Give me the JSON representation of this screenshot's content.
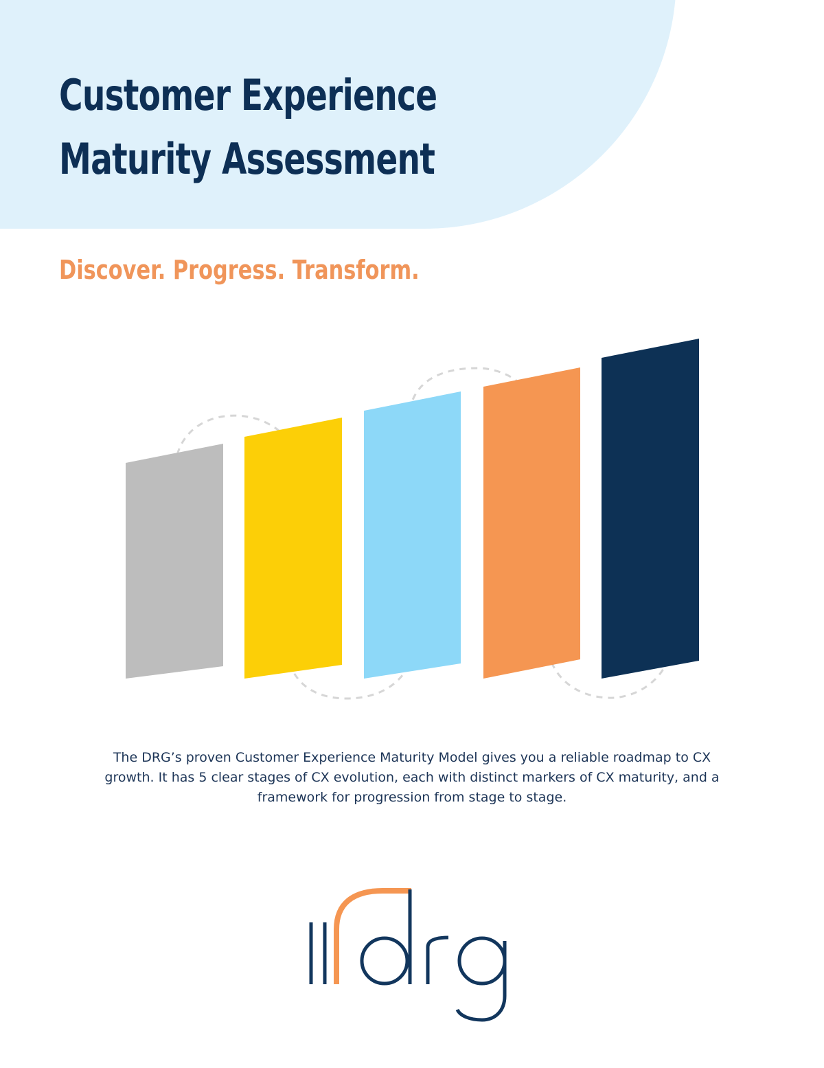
{
  "document": {
    "title_line1": "Customer Experience",
    "title_line2": "Maturity Assessment",
    "tagline": "Discover. Progress. Transform.",
    "description": "The DRG’s proven Customer Experience Maturity Model gives you a reliable roadmap to CX growth. It has 5 clear stages of CX evolution, each with distinct markers of CX maturity, and a framework for progression from stage to stage."
  },
  "colors": {
    "title": "#0d2f55",
    "tagline": "#f0955a",
    "hero_background": "#dff1fb",
    "stage_colors": [
      "#bdbdbd",
      "#fccf07",
      "#8dd8f8",
      "#f59652",
      "#0d3155"
    ],
    "connector": "#d6d6d6"
  },
  "logo": {
    "text": "drg",
    "brand_color": "#12365d",
    "accent_color": "#f59652"
  }
}
